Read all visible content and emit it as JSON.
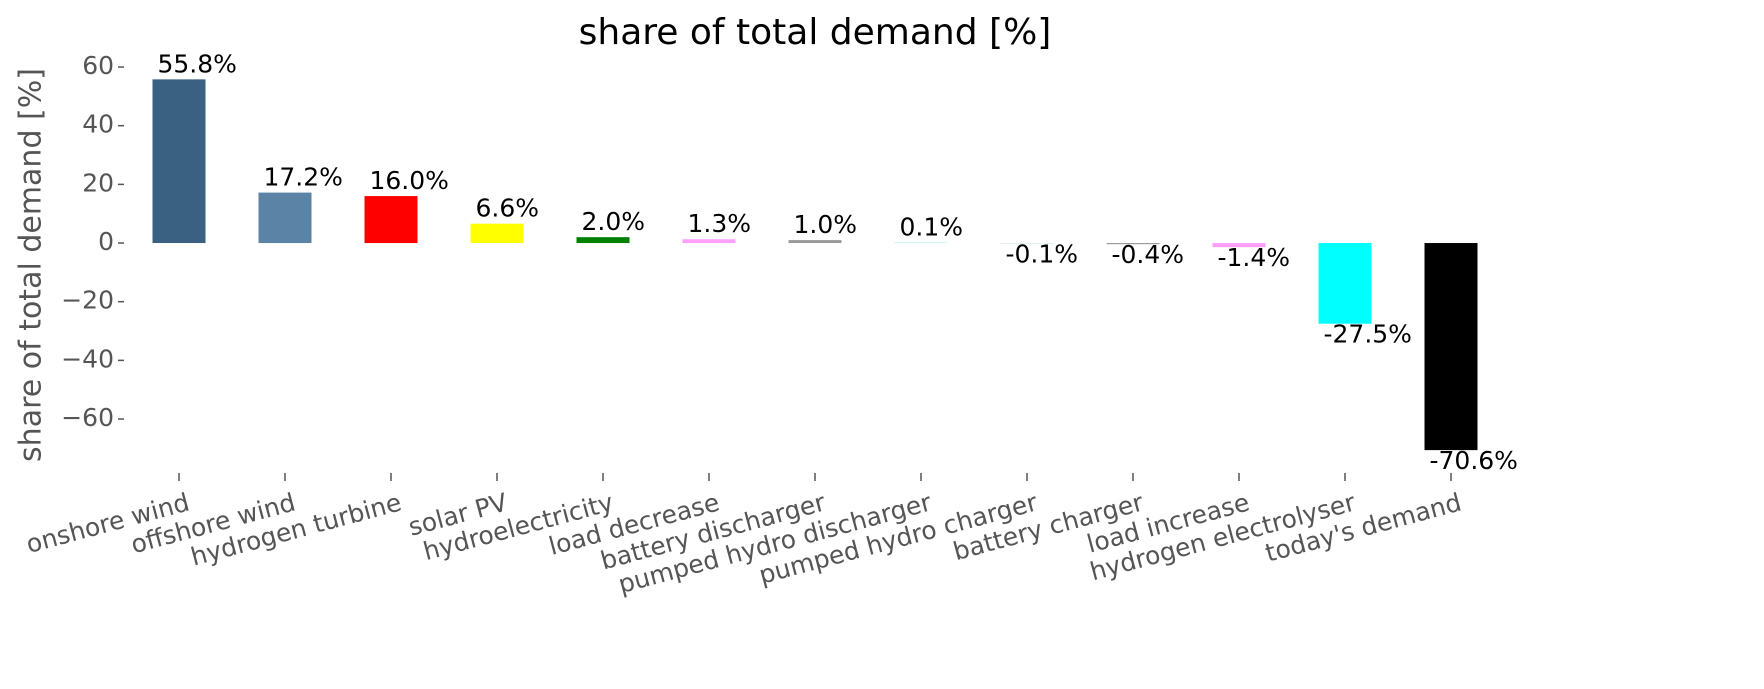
{
  "chart_data": {
    "type": "bar",
    "title": "share of total demand [%]",
    "ylabel": "share of total demand [%]",
    "categories": [
      "onshore wind",
      "offshore wind",
      "hydrogen turbine",
      "solar PV",
      "hydroelectricity",
      "load decrease",
      "battery discharger",
      "pumped hydro discharger",
      "pumped hydro charger",
      "battery charger",
      "load increase",
      "hydrogen electrolyser",
      "today's demand"
    ],
    "values": [
      55.8,
      17.2,
      16.0,
      6.6,
      2.0,
      1.3,
      1.0,
      0.1,
      -0.1,
      -0.4,
      -1.4,
      -27.5,
      -70.6
    ],
    "value_labels": [
      "55.8%",
      "17.2%",
      "16.0%",
      "6.6%",
      "2.0%",
      "1.3%",
      "1.0%",
      "0.1%",
      "-0.1%",
      "-0.4%",
      "-1.4%",
      "-27.5%",
      "-70.6%"
    ],
    "colors": [
      "#3b6182",
      "#5b83a5",
      "#ff0000",
      "#ffff00",
      "#008000",
      "#ffa0ff",
      "#999999",
      "#51dbcc",
      "#a9d0c5",
      "#999999",
      "#ffa0ff",
      "#00ffff",
      "#000000"
    ],
    "ylim": [
      -78.4,
      62.4
    ],
    "yticks": [
      {
        "value": -60,
        "label": "−60"
      },
      {
        "value": -40,
        "label": "−40"
      },
      {
        "value": -20,
        "label": "−20"
      },
      0,
      20,
      40,
      60
    ]
  }
}
